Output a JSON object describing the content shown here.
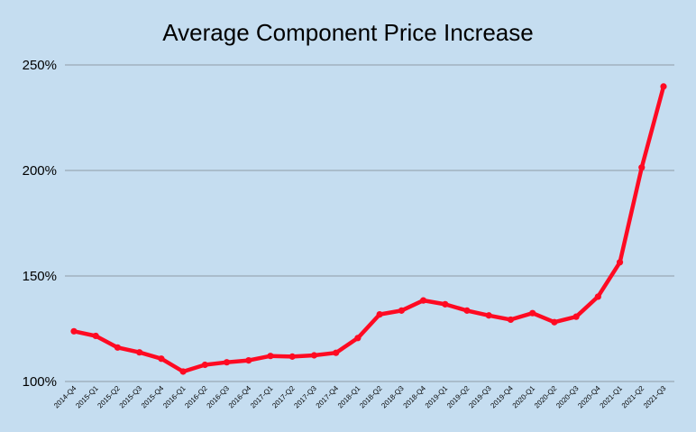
{
  "chart_data": {
    "type": "line",
    "title": "Average Component Price Increase",
    "xlabel": "",
    "ylabel": "",
    "ylim": [
      100,
      250
    ],
    "y_ticks": [
      "100%",
      "150%",
      "200%",
      "250%"
    ],
    "y_tick_values": [
      100,
      150,
      200,
      250
    ],
    "grid": true,
    "legend": "none",
    "line_color": "#ff0a22",
    "categories": [
      "2014-Q4",
      "2015-Q1",
      "2015-Q2",
      "2015-Q3",
      "2015-Q4",
      "2016-Q1",
      "2016-Q2",
      "2016-Q3",
      "2016-Q4",
      "2017-Q1",
      "2017-Q2",
      "2017-Q3",
      "2017-Q4",
      "2018-Q1",
      "2018-Q2",
      "2018-Q3",
      "2018-Q4",
      "2019-Q1",
      "2019-Q2",
      "2019-Q3",
      "2019-Q4",
      "2020-Q1",
      "2020-Q2",
      "2020-Q3",
      "2020-Q4",
      "2021-Q1",
      "2021-Q2",
      "2021-Q3"
    ],
    "values": [
      123.8,
      121.6,
      116.1,
      113.8,
      110.8,
      104.7,
      107.9,
      109.1,
      110.0,
      112.1,
      111.8,
      112.4,
      113.6,
      120.6,
      131.8,
      133.6,
      138.4,
      136.6,
      133.6,
      131.3,
      129.3,
      132.4,
      128.1,
      130.7,
      140.2,
      156.5,
      201.4,
      239.8
    ]
  }
}
